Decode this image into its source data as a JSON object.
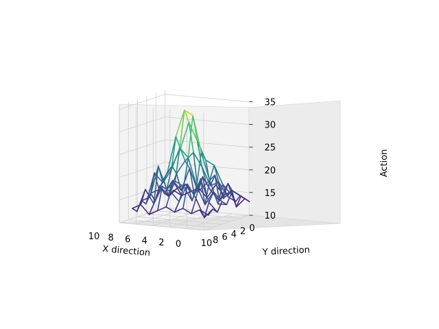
{
  "chart_data": {
    "type": "3d-wireframe",
    "xlabel": "X direction",
    "ylabel": "Y direction",
    "zlabel": "Action",
    "x_ticks": [
      0,
      2,
      4,
      6,
      8,
      10
    ],
    "y_ticks": [
      0,
      2,
      4,
      6,
      8,
      10
    ],
    "z_ticks": [
      10,
      15,
      20,
      25,
      30,
      35
    ],
    "xlim": [
      0,
      10
    ],
    "ylim": [
      0,
      10
    ],
    "zlim": [
      10,
      36
    ],
    "colormap": "viridis",
    "grid": true,
    "x": [
      0,
      1,
      2,
      3,
      4,
      5,
      6,
      7,
      8,
      9
    ],
    "y": [
      0,
      1,
      2,
      3,
      4,
      5,
      6,
      7,
      8,
      9
    ],
    "z": [
      [
        13,
        14,
        15,
        14,
        16,
        14,
        15,
        13,
        14,
        13
      ],
      [
        14,
        12,
        16,
        15,
        18,
        14,
        17,
        15,
        12,
        14
      ],
      [
        15,
        17,
        14,
        18,
        22,
        19,
        14,
        20,
        16,
        13
      ],
      [
        14,
        13,
        19,
        17,
        23,
        25,
        18,
        15,
        19,
        14
      ],
      [
        16,
        15,
        17,
        21,
        27,
        33,
        24,
        18,
        15,
        13
      ],
      [
        13,
        18,
        15,
        24,
        31,
        34,
        26,
        19,
        17,
        14
      ],
      [
        15,
        14,
        20,
        22,
        25,
        28,
        21,
        17,
        18,
        13
      ],
      [
        14,
        16,
        15,
        19,
        21,
        20,
        18,
        22,
        14,
        12
      ],
      [
        13,
        15,
        17,
        14,
        18,
        16,
        20,
        15,
        17,
        14
      ],
      [
        14,
        13,
        14,
        16,
        13,
        15,
        13,
        14,
        12,
        13
      ]
    ]
  }
}
